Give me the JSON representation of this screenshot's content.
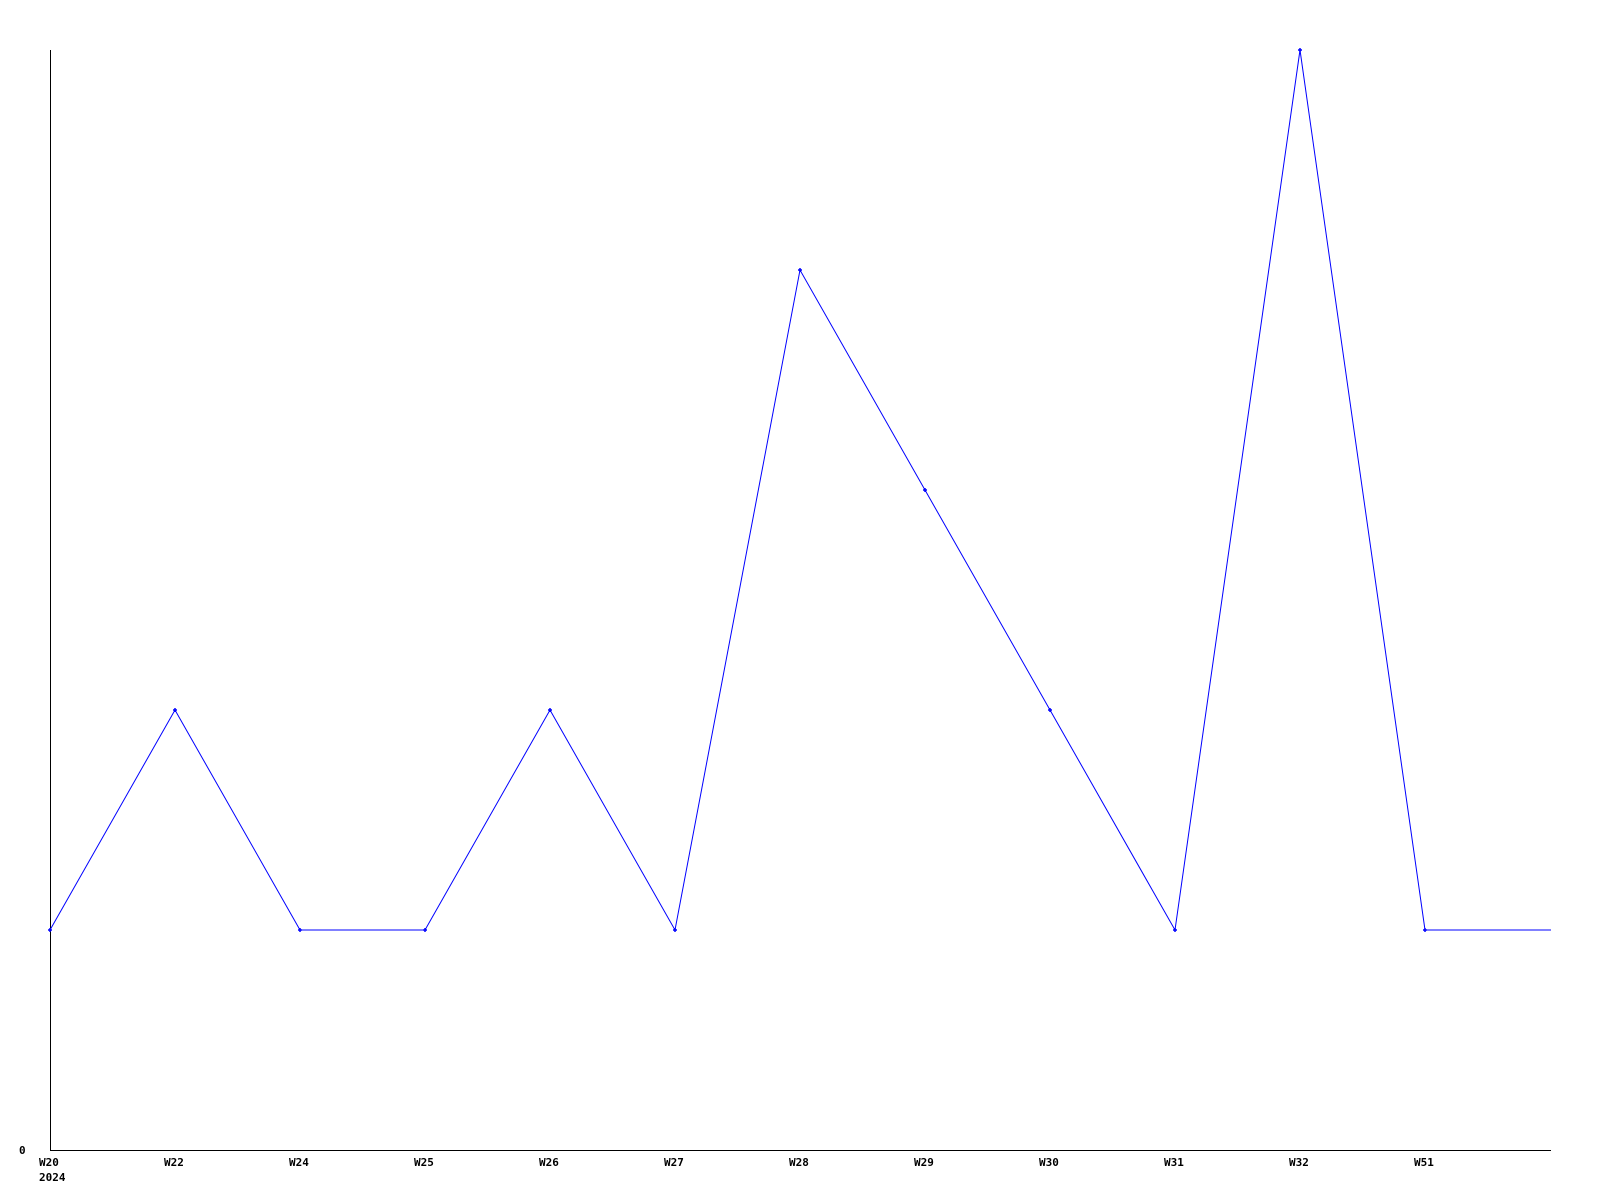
{
  "chart_data": {
    "type": "line",
    "title": "",
    "xlabel": "",
    "ylabel": "",
    "categories": [
      "W20",
      "W22",
      "W24",
      "W25",
      "W26",
      "W27",
      "W28",
      "W29",
      "W30",
      "W31",
      "W32",
      "W51"
    ],
    "year_label": "2024",
    "y_tick_labels": [
      "0"
    ],
    "ylim": [
      0,
      5
    ],
    "grid": false,
    "series": [
      {
        "values": [
          1,
          2,
          1,
          1,
          2,
          1,
          4,
          3,
          2,
          1,
          5,
          1
        ],
        "color": "#0000ff"
      }
    ],
    "line_extends_past_last_point": true
  }
}
